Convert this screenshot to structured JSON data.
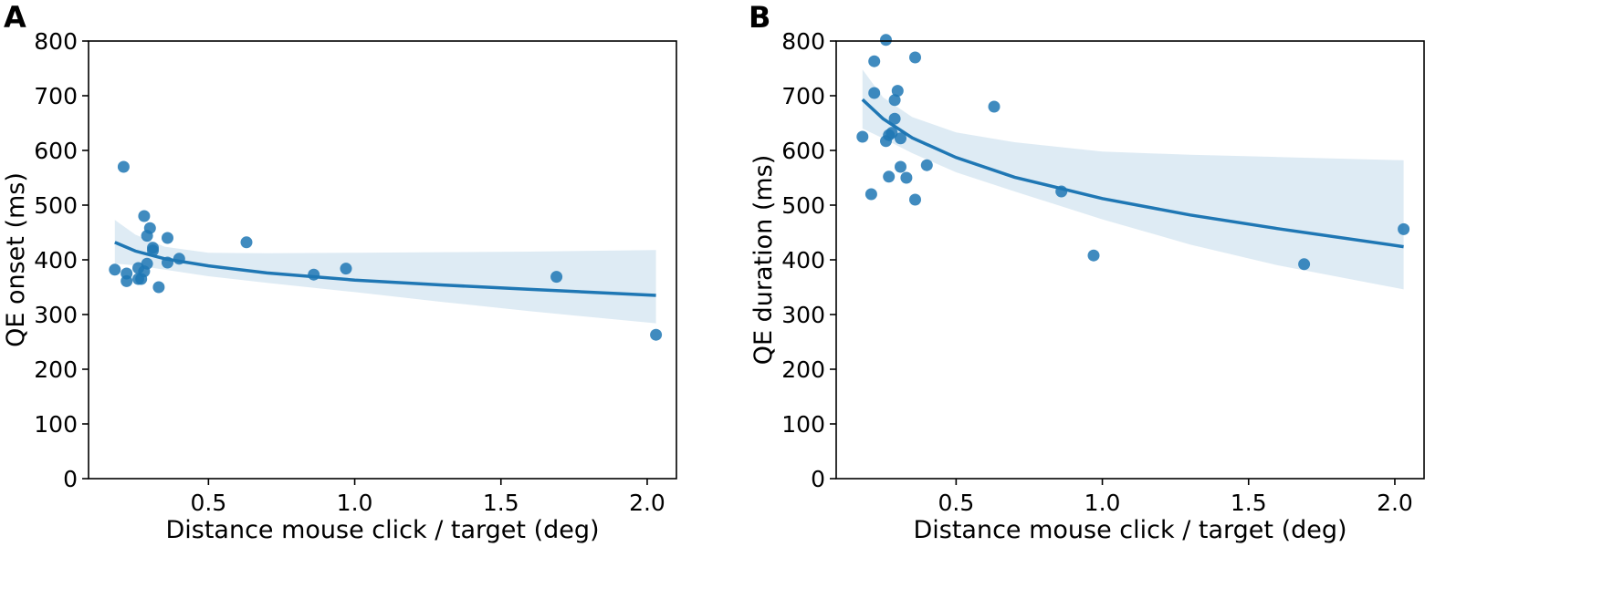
{
  "chart_data": [
    {
      "type": "scatter",
      "panel_label": "A",
      "title": "",
      "xlabel": "Distance mouse click / target (deg)",
      "ylabel": "QE onset (ms)",
      "xlim": [
        0.09,
        2.1
      ],
      "ylim": [
        0,
        800
      ],
      "xticks": [
        0.5,
        1.0,
        1.5,
        2.0
      ],
      "xtick_labels": [
        "0.5",
        "1.0",
        "1.5",
        "2.0"
      ],
      "yticks": [
        0,
        100,
        200,
        300,
        400,
        500,
        600,
        700,
        800
      ],
      "ytick_labels": [
        "0",
        "100",
        "200",
        "300",
        "400",
        "500",
        "600",
        "700",
        "800"
      ],
      "grid": false,
      "color": "#1f77b4",
      "points": [
        {
          "x": 0.18,
          "y": 382
        },
        {
          "x": 0.21,
          "y": 570
        },
        {
          "x": 0.22,
          "y": 375
        },
        {
          "x": 0.22,
          "y": 361
        },
        {
          "x": 0.26,
          "y": 385
        },
        {
          "x": 0.26,
          "y": 365
        },
        {
          "x": 0.27,
          "y": 365
        },
        {
          "x": 0.28,
          "y": 480
        },
        {
          "x": 0.28,
          "y": 379
        },
        {
          "x": 0.29,
          "y": 444
        },
        {
          "x": 0.3,
          "y": 458
        },
        {
          "x": 0.29,
          "y": 393
        },
        {
          "x": 0.31,
          "y": 422
        },
        {
          "x": 0.31,
          "y": 417
        },
        {
          "x": 0.33,
          "y": 350
        },
        {
          "x": 0.36,
          "y": 440
        },
        {
          "x": 0.36,
          "y": 395
        },
        {
          "x": 0.4,
          "y": 402
        },
        {
          "x": 0.63,
          "y": 432
        },
        {
          "x": 0.86,
          "y": 373
        },
        {
          "x": 0.97,
          "y": 384
        },
        {
          "x": 1.69,
          "y": 369
        },
        {
          "x": 2.03,
          "y": 263
        }
      ],
      "fit": {
        "x": [
          0.18,
          0.25,
          0.35,
          0.5,
          0.7,
          1.0,
          1.3,
          1.6,
          2.03
        ],
        "y": [
          432,
          416,
          402,
          389,
          376,
          363,
          354,
          346,
          335
        ]
      },
      "ci_band": {
        "x": [
          0.18,
          0.25,
          0.35,
          0.5,
          0.7,
          1.0,
          1.3,
          1.6,
          2.03
        ],
        "lower": [
          393,
          390,
          382,
          370,
          358,
          341,
          323,
          306,
          284
        ],
        "upper": [
          473,
          446,
          424,
          413,
          412,
          413,
          414,
          415,
          418
        ]
      }
    },
    {
      "type": "scatter",
      "panel_label": "B",
      "title": "",
      "xlabel": "Distance mouse click / target (deg)",
      "ylabel": "QE duration (ms)",
      "xlim": [
        0.09,
        2.1
      ],
      "ylim": [
        0,
        800
      ],
      "xticks": [
        0.5,
        1.0,
        1.5,
        2.0
      ],
      "xtick_labels": [
        "0.5",
        "1.0",
        "1.5",
        "2.0"
      ],
      "yticks": [
        0,
        100,
        200,
        300,
        400,
        500,
        600,
        700,
        800
      ],
      "ytick_labels": [
        "0",
        "100",
        "200",
        "300",
        "400",
        "500",
        "600",
        "700",
        "800"
      ],
      "grid": false,
      "color": "#1f77b4",
      "points": [
        {
          "x": 0.18,
          "y": 625
        },
        {
          "x": 0.21,
          "y": 520
        },
        {
          "x": 0.22,
          "y": 763
        },
        {
          "x": 0.22,
          "y": 705
        },
        {
          "x": 0.26,
          "y": 802
        },
        {
          "x": 0.26,
          "y": 617
        },
        {
          "x": 0.27,
          "y": 628
        },
        {
          "x": 0.27,
          "y": 552
        },
        {
          "x": 0.28,
          "y": 632
        },
        {
          "x": 0.29,
          "y": 692
        },
        {
          "x": 0.29,
          "y": 658
        },
        {
          "x": 0.3,
          "y": 709
        },
        {
          "x": 0.31,
          "y": 622
        },
        {
          "x": 0.31,
          "y": 570
        },
        {
          "x": 0.33,
          "y": 550
        },
        {
          "x": 0.36,
          "y": 770
        },
        {
          "x": 0.36,
          "y": 510
        },
        {
          "x": 0.4,
          "y": 573
        },
        {
          "x": 0.63,
          "y": 680
        },
        {
          "x": 0.86,
          "y": 525
        },
        {
          "x": 0.97,
          "y": 408
        },
        {
          "x": 1.69,
          "y": 392
        },
        {
          "x": 2.03,
          "y": 456
        }
      ],
      "fit": {
        "x": [
          0.18,
          0.25,
          0.35,
          0.5,
          0.7,
          1.0,
          1.3,
          1.6,
          2.03
        ],
        "y": [
          693,
          658,
          623,
          587,
          551,
          512,
          482,
          457,
          424
        ]
      },
      "ci_band": {
        "x": [
          0.18,
          0.25,
          0.35,
          0.5,
          0.7,
          1.0,
          1.3,
          1.6,
          2.03
        ],
        "lower": [
          640,
          622,
          595,
          560,
          525,
          474,
          428,
          390,
          346
        ],
        "upper": [
          748,
          697,
          661,
          633,
          615,
          598,
          592,
          588,
          582
        ]
      }
    }
  ]
}
